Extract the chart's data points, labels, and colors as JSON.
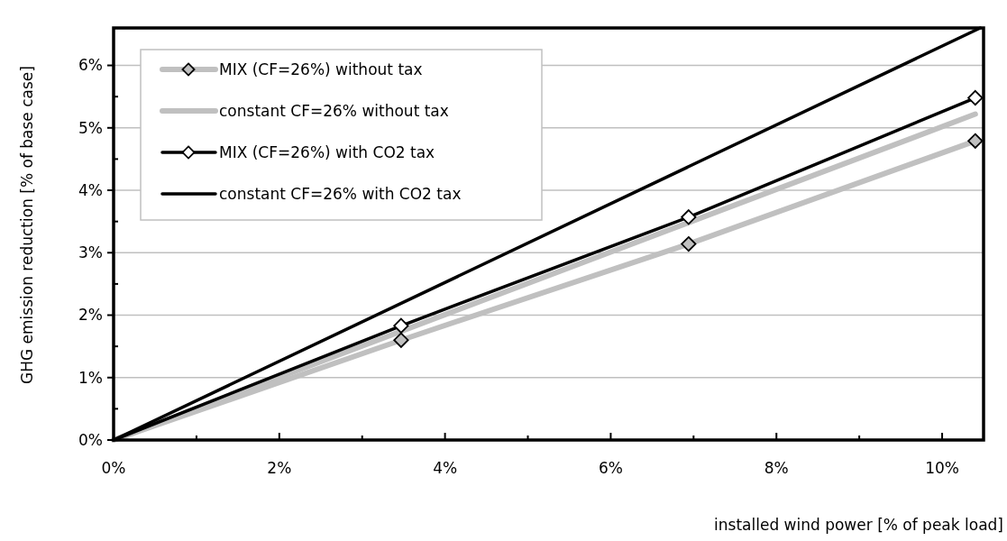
{
  "chart_data": {
    "type": "line",
    "xlabel": "installed wind power  [% of peak load]",
    "ylabel": "GHG emission reduction  [% of base case]",
    "xlim": [
      0,
      10.5
    ],
    "ylim": [
      0,
      6.6
    ],
    "xticks": [
      {
        "value": 0,
        "label": "0%"
      },
      {
        "value": 1,
        "label": null
      },
      {
        "value": 2,
        "label": "2%"
      },
      {
        "value": 3,
        "label": null
      },
      {
        "value": 4,
        "label": "4%"
      },
      {
        "value": 5,
        "label": null
      },
      {
        "value": 6,
        "label": "6%"
      },
      {
        "value": 7,
        "label": null
      },
      {
        "value": 8,
        "label": "8%"
      },
      {
        "value": 9,
        "label": null
      },
      {
        "value": 10,
        "label": "10%"
      }
    ],
    "yticks": [
      {
        "value": 0,
        "label": "0%"
      },
      {
        "value": 0.5,
        "label": null
      },
      {
        "value": 1,
        "label": "1%"
      },
      {
        "value": 1.5,
        "label": null
      },
      {
        "value": 2,
        "label": "2%"
      },
      {
        "value": 2.5,
        "label": null
      },
      {
        "value": 3,
        "label": "3%"
      },
      {
        "value": 3.5,
        "label": null
      },
      {
        "value": 4,
        "label": "4%"
      },
      {
        "value": 4.5,
        "label": null
      },
      {
        "value": 5,
        "label": "5%"
      },
      {
        "value": 5.5,
        "label": null
      },
      {
        "value": 6,
        "label": "6%"
      }
    ],
    "grid": "y",
    "legend": "top left",
    "line_style": "solid",
    "series": [
      {
        "name": "MIX (CF=26%) without tax",
        "color": "#c0c0c0",
        "marker": "diamond",
        "x": [
          0,
          3.47,
          6.94,
          10.4
        ],
        "values": [
          0,
          1.6,
          3.14,
          4.79
        ]
      },
      {
        "name": "constant CF=26% without tax",
        "color": "#c0c0c0",
        "marker": "none",
        "x": [
          0,
          10.4
        ],
        "values": [
          0,
          5.22
        ]
      },
      {
        "name": "MIX (CF=26%) with CO2 tax",
        "color": "#000000",
        "marker": "diamond",
        "x": [
          0,
          3.47,
          6.94,
          10.4
        ],
        "values": [
          0,
          1.83,
          3.57,
          5.48
        ]
      },
      {
        "name": "constant CF=26% with CO2 tax",
        "color": "#000000",
        "marker": "none",
        "x": [
          0,
          10.46
        ],
        "values": [
          0,
          6.6
        ]
      }
    ]
  }
}
